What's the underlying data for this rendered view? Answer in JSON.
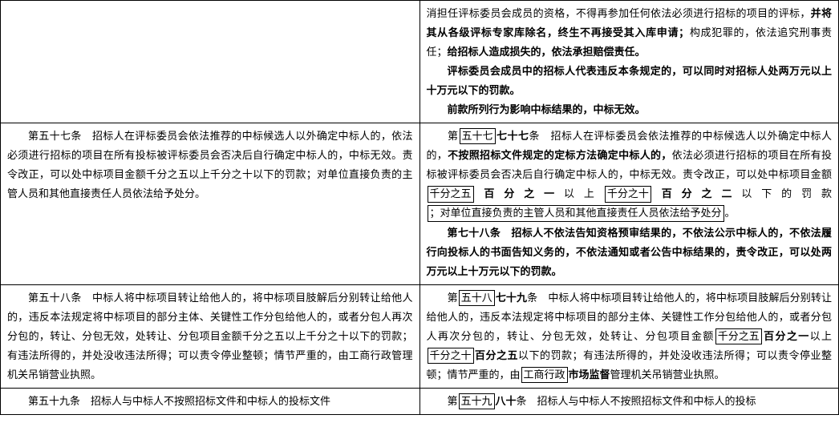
{
  "row1": {
    "right": {
      "p1_a": "消担任评标委员会成员的资格，不得再参加任何依法必须进行招标的项目的评标，",
      "p1_b": "并将其从各级评标专家库除名，终生不再接受其入库申请；",
      "p1_c": "构成犯罪的，依法追究刑事责任；",
      "p1_d": "给招标人造成损失的，依法承担赔偿责任。",
      "p2": "评标委员会成员中的招标人代表违反本条规定的，可以同时对招标人处两万元以上十万元以下的罚款。",
      "p3": "前款所列行为影响中标结果的，中标无效。"
    }
  },
  "row2": {
    "left": {
      "p1": "第五十七条　招标人在评标委员会依法推荐的中标候选人以外确定中标人的，依法必须进行招标的项目在所有投标被评标委员会否决后自行确定中标人的，中标无效。责令改正，可以处中标项目金额千分之五以上千分之十以下的罚款；对单位直接负责的主管人员和其他直接责任人员依法给予处分。"
    },
    "right": {
      "p1_pre": "第",
      "p1_box1": "五十七",
      "p1_bold1": "七十七",
      "p1_a": "条　招标人在评标委员会依法推荐的中标候选人以外确定中标人的，",
      "p1_bold2": "不按照招标文件规定的定标方法确定中标人的，",
      "p1_b": "依法必须进行招标的项目在所有投标被评标委员会否决后自行确定中标人的，中标无效。责令改正，可以处中标项目金额",
      "p1_box2": "千分之五",
      "p1_bold3": "百分之一",
      "p1_c": "以上",
      "p1_box3": "千分之十",
      "p1_bold4": "百分之二",
      "p1_d": "以下的罚款",
      "p1_box4": "；对单位直接负责的主管人员和其他直接责任人员依法给予处分",
      "p1_e": "。",
      "p2_bold": "第七十八条　招标人不依法告知资格预审结果的，不依法公示中标人的，不依法履行向投标人的书面告知义务的，不依法通知或者公告中标结果的，责令改正，可以处两万元以上十万元以下的罚款。"
    }
  },
  "row3": {
    "left": {
      "p1": "第五十八条　中标人将中标项目转让给他人的，将中标项目肢解后分别转让给他人的，违反本法规定将中标项目的部分主体、关键性工作分包给他人的，或者分包人再次分包的，转让、分包无效，处转让、分包项目金额千分之五以上千分之十以下的罚款；有违法所得的，并处没收违法所得；可以责令停业整顿；情节严重的，由工商行政管理机关吊销营业执照。"
    },
    "right": {
      "p1_pre": "第",
      "p1_box1": "五十八",
      "p1_bold1": "七十九",
      "p1_a": "条　中标人将中标项目转让给他人的，将中标项目肢解后分别转让给他人的，违反本法规定将中标项目的部分主体、关键性工作分包给他人的，或者分包人再次分包的，转让、分包无效，处转让、分包项目金额",
      "p1_box2": "千分之五",
      "p1_bold2": "百分之一",
      "p1_b": "以上",
      "p1_box3": "千分之十",
      "p1_bold3": "百分之五",
      "p1_c": "以下的罚款；有违法所得的，并处没收违法所得；可以责令停业整顿；情节严重的，由",
      "p1_box4": "工商行政",
      "p1_bold4": "市场监督",
      "p1_d": "管理机关吊销营业执照。"
    }
  },
  "row4": {
    "left": {
      "p1": "第五十九条　招标人与中标人不按照招标文件和中标人的投标文件"
    },
    "right": {
      "p1_pre": "第",
      "p1_box1": "五十九",
      "p1_bold1": "八十",
      "p1_a": "条　招标人与中标人不按照招标文件和中标人的投标"
    }
  }
}
